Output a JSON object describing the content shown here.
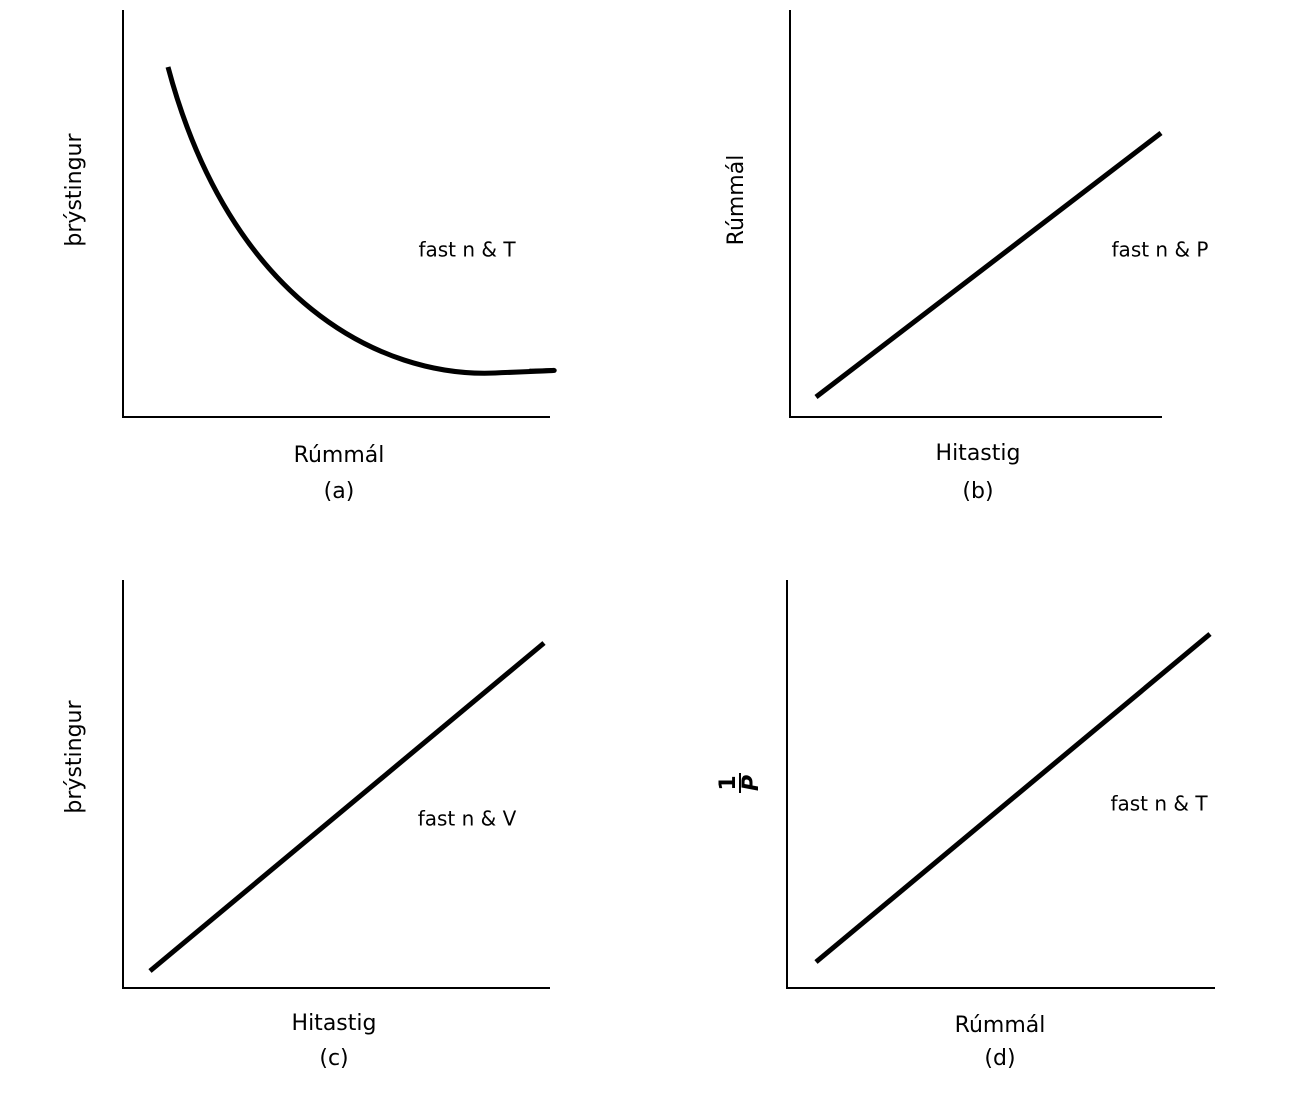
{
  "panels": [
    {
      "y_label": "þrýstingur",
      "x_label": "Rúmmál",
      "caption": "(a)",
      "annotation": "fast n & T"
    },
    {
      "y_label": "Rúmmál",
      "x_label": "Hitastig",
      "caption": "(b)",
      "annotation": "fast n & P"
    },
    {
      "y_label": "þrýstingur",
      "x_label": "Hitastig",
      "caption": "(c)",
      "annotation": "fast n & V"
    },
    {
      "y_label": {
        "numerator": "1",
        "denominator": "P"
      },
      "x_label": "Rúmmál",
      "caption": "(d)",
      "annotation": "fast n & T"
    }
  ]
}
